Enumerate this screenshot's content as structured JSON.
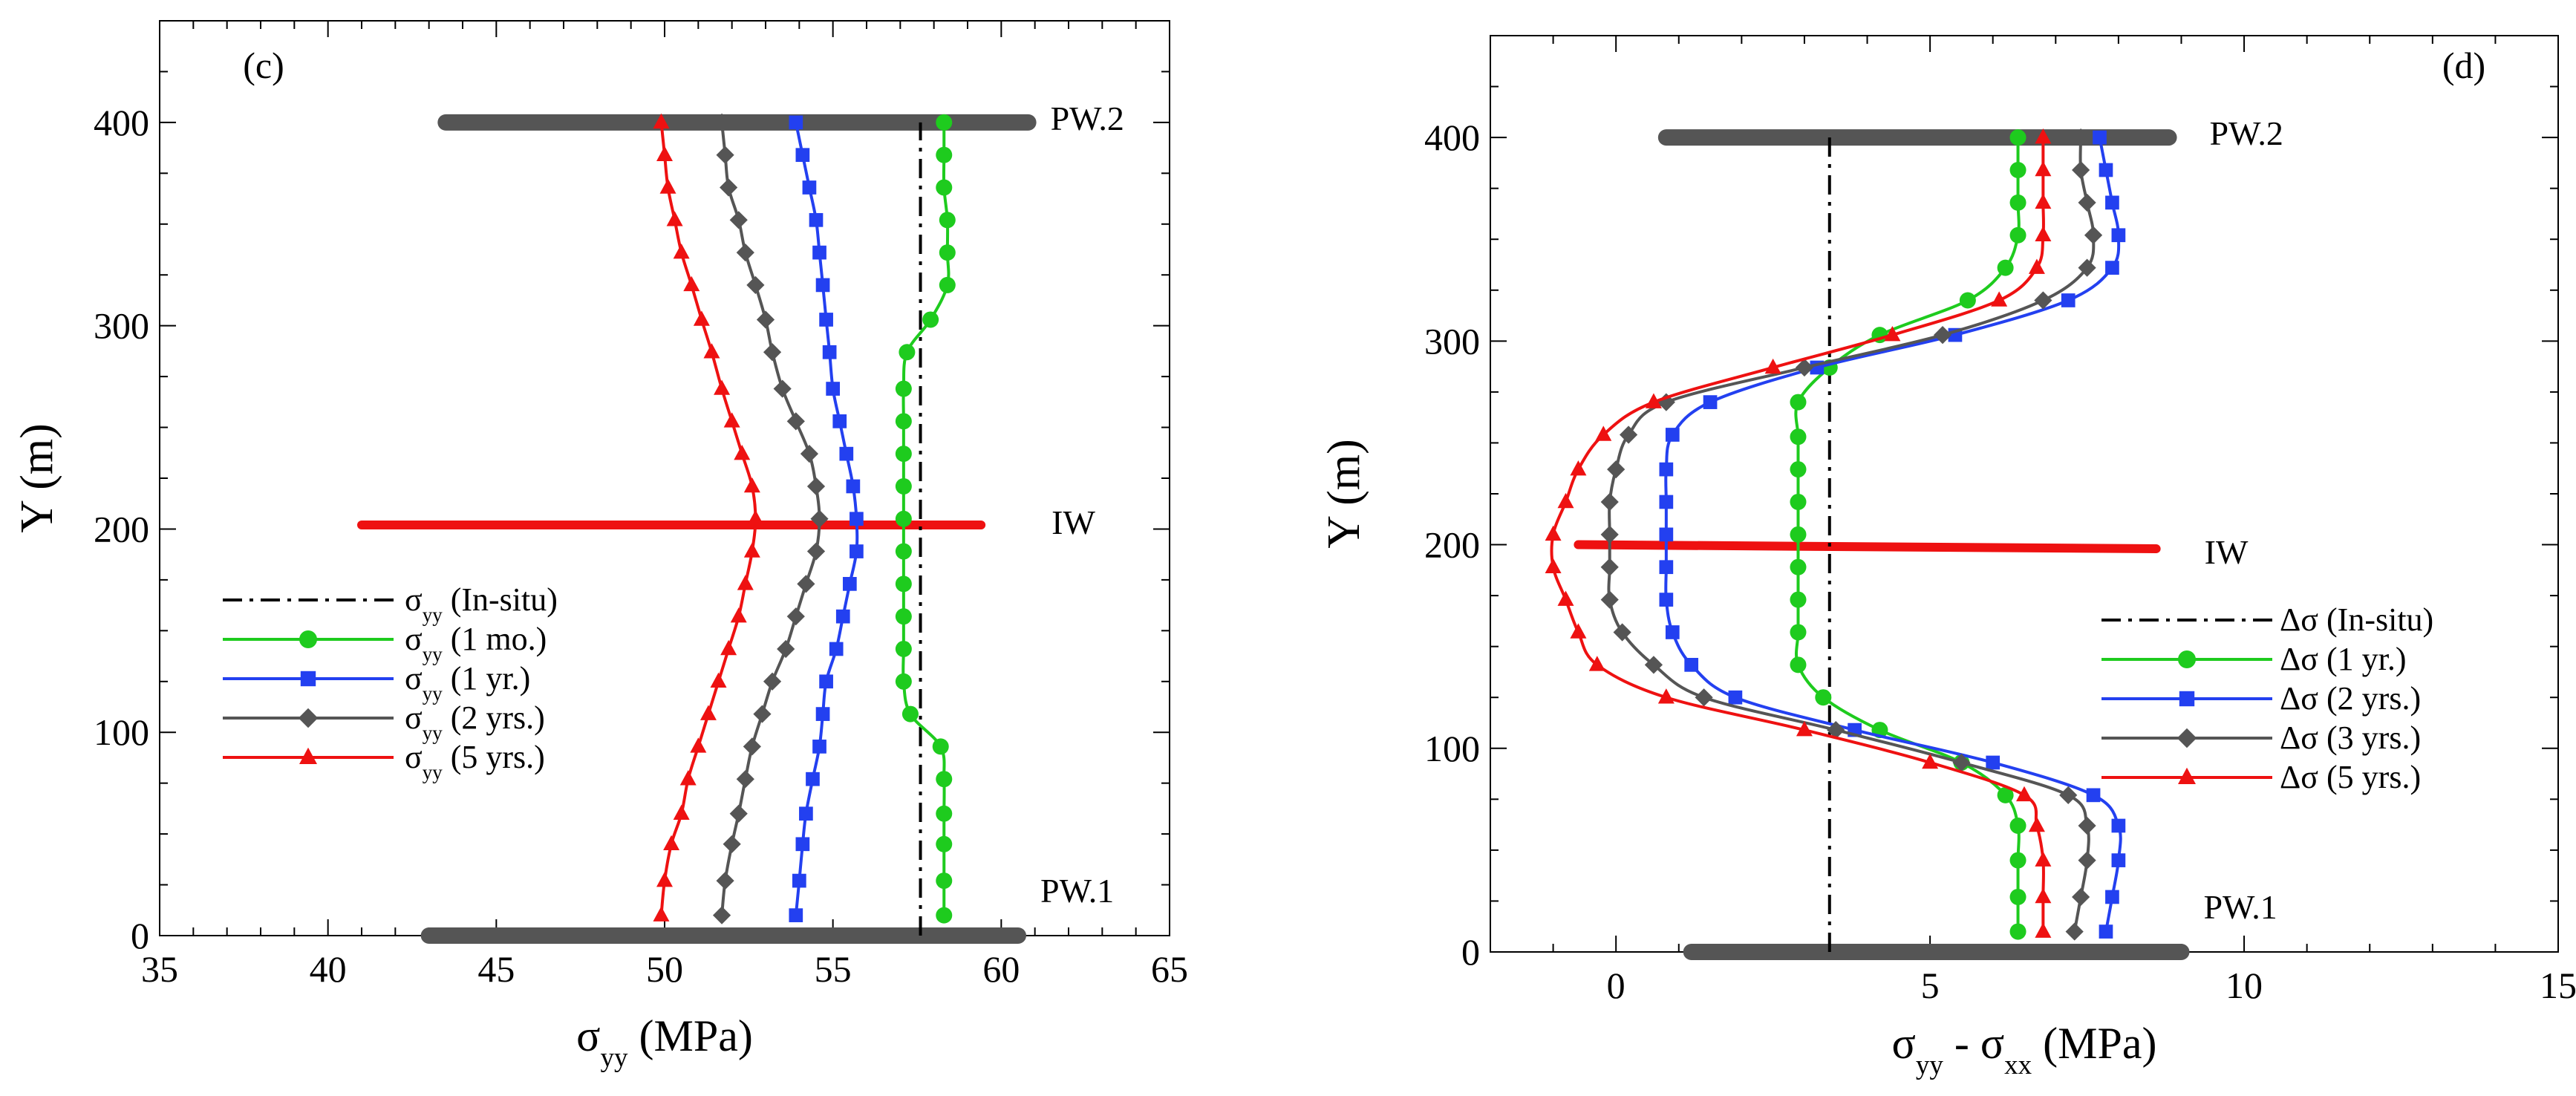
{
  "colors": {
    "insitu": "#000000",
    "green": "#1ecb1e",
    "blue": "#2340f0",
    "gray": "#555555",
    "red": "#ee1111",
    "well": "#555555",
    "iw": "#ee1111"
  },
  "chart_data": [
    {
      "type": "line",
      "panel_label": "(c)",
      "xlabel": {
        "main": "σ",
        "sub": "yy",
        "rest": " (MPa)"
      },
      "ylabel": "Y (m)",
      "xlim": [
        35,
        65
      ],
      "ylim": [
        0,
        450
      ],
      "xticks": [
        35,
        40,
        45,
        50,
        55,
        60,
        65
      ],
      "xtick_labels": [
        "35",
        "40",
        "45",
        "50",
        "55",
        "60",
        "65"
      ],
      "yticks": [
        0,
        100,
        200,
        300,
        400
      ],
      "ytick_labels": [
        "0",
        "100",
        "200",
        "300",
        "400"
      ],
      "wells": [
        {
          "label": "PW.2",
          "y": 400,
          "x": [
            43.5,
            60.8
          ],
          "color": "#555555"
        },
        {
          "label": "PW.1",
          "y": 0,
          "x": [
            43.0,
            60.5
          ],
          "color": "#555555"
        },
        {
          "label": "IW",
          "y": 202,
          "x": [
            41.0,
            59.4
          ],
          "color": "#ee1111"
        }
      ],
      "legend": {
        "position": "lower-left",
        "entries": [
          {
            "main": "σ",
            "sub": "yy",
            "rest": " (In-situ)"
          },
          {
            "main": "σ",
            "sub": "yy",
            "rest": " (1 mo.)"
          },
          {
            "main": "σ",
            "sub": "yy",
            "rest": " (1 yr.)"
          },
          {
            "main": "σ",
            "sub": "yy",
            "rest": " (2 yrs.)"
          },
          {
            "main": "σ",
            "sub": "yy",
            "rest": " (5 yrs.)"
          }
        ]
      },
      "series": [
        {
          "name": "σyy (In-situ)",
          "style": "dashdot",
          "marker": "none",
          "color": "#000000",
          "points": [
            [
              57.6,
              0
            ],
            [
              57.6,
              400
            ]
          ]
        },
        {
          "name": "σyy (1 mo.)",
          "style": "solid",
          "marker": "circle",
          "color": "#1ecb1e",
          "points": [
            [
              58.3,
              10
            ],
            [
              58.3,
              27
            ],
            [
              58.3,
              45
            ],
            [
              58.3,
              60
            ],
            [
              58.3,
              77
            ],
            [
              58.2,
              93
            ],
            [
              57.3,
              109
            ],
            [
              57.1,
              125
            ],
            [
              57.1,
              141
            ],
            [
              57.1,
              157
            ],
            [
              57.1,
              173
            ],
            [
              57.1,
              189
            ],
            [
              57.1,
              205
            ],
            [
              57.1,
              221
            ],
            [
              57.1,
              237
            ],
            [
              57.1,
              253
            ],
            [
              57.1,
              269
            ],
            [
              57.2,
              287
            ],
            [
              57.9,
              303
            ],
            [
              58.4,
              320
            ],
            [
              58.4,
              336
            ],
            [
              58.4,
              352
            ],
            [
              58.3,
              368
            ],
            [
              58.3,
              384
            ],
            [
              58.3,
              400
            ]
          ]
        },
        {
          "name": "σyy (1 yr.)",
          "style": "solid",
          "marker": "square",
          "color": "#2340f0",
          "points": [
            [
              53.9,
              10
            ],
            [
              54.0,
              27
            ],
            [
              54.1,
              45
            ],
            [
              54.2,
              60
            ],
            [
              54.4,
              77
            ],
            [
              54.6,
              93
            ],
            [
              54.7,
              109
            ],
            [
              54.8,
              125
            ],
            [
              55.1,
              141
            ],
            [
              55.3,
              157
            ],
            [
              55.5,
              173
            ],
            [
              55.7,
              189
            ],
            [
              55.7,
              205
            ],
            [
              55.6,
              221
            ],
            [
              55.4,
              237
            ],
            [
              55.2,
              253
            ],
            [
              55.0,
              269
            ],
            [
              54.9,
              287
            ],
            [
              54.8,
              303
            ],
            [
              54.7,
              320
            ],
            [
              54.6,
              336
            ],
            [
              54.5,
              352
            ],
            [
              54.3,
              368
            ],
            [
              54.1,
              384
            ],
            [
              53.9,
              400
            ]
          ]
        },
        {
          "name": "σyy (2 yrs.)",
          "style": "solid",
          "marker": "diamond",
          "color": "#555555",
          "points": [
            [
              51.7,
              10
            ],
            [
              51.8,
              27
            ],
            [
              52.0,
              45
            ],
            [
              52.2,
              60
            ],
            [
              52.4,
              77
            ],
            [
              52.6,
              93
            ],
            [
              52.9,
              109
            ],
            [
              53.2,
              125
            ],
            [
              53.6,
              141
            ],
            [
              53.9,
              157
            ],
            [
              54.2,
              173
            ],
            [
              54.5,
              189
            ],
            [
              54.6,
              205
            ],
            [
              54.5,
              221
            ],
            [
              54.3,
              237
            ],
            [
              53.9,
              253
            ],
            [
              53.5,
              269
            ],
            [
              53.2,
              287
            ],
            [
              53.0,
              303
            ],
            [
              52.7,
              320
            ],
            [
              52.4,
              336
            ],
            [
              52.2,
              352
            ],
            [
              51.9,
              368
            ],
            [
              51.8,
              384
            ],
            [
              51.7,
              400
            ]
          ]
        },
        {
          "name": "σyy (5 yrs.)",
          "style": "solid",
          "marker": "triangle",
          "color": "#ee1111",
          "points": [
            [
              49.9,
              10
            ],
            [
              50.0,
              27
            ],
            [
              50.2,
              45
            ],
            [
              50.5,
              60
            ],
            [
              50.7,
              77
            ],
            [
              51.0,
              93
            ],
            [
              51.3,
              109
            ],
            [
              51.6,
              125
            ],
            [
              51.9,
              141
            ],
            [
              52.2,
              157
            ],
            [
              52.4,
              173
            ],
            [
              52.6,
              189
            ],
            [
              52.7,
              205
            ],
            [
              52.6,
              221
            ],
            [
              52.3,
              237
            ],
            [
              52.0,
              253
            ],
            [
              51.7,
              269
            ],
            [
              51.4,
              287
            ],
            [
              51.1,
              303
            ],
            [
              50.8,
              320
            ],
            [
              50.5,
              336
            ],
            [
              50.3,
              352
            ],
            [
              50.1,
              368
            ],
            [
              50.0,
              384
            ],
            [
              49.9,
              400
            ]
          ]
        }
      ]
    },
    {
      "type": "line",
      "panel_label": "(d)",
      "xlabel": {
        "main": "σ",
        "sub": "yy",
        "rest": " - ",
        "main2": "σ",
        "sub2": "xx",
        "rest2": " (MPa)"
      },
      "ylabel": "Y (m)",
      "xlim": [
        -2,
        15
      ],
      "ylim": [
        0,
        450
      ],
      "xticks": [
        0,
        5,
        10,
        15
      ],
      "xtick_labels": [
        "0",
        "5",
        "10",
        "15"
      ],
      "yticks": [
        0,
        100,
        200,
        300,
        400
      ],
      "ytick_labels": [
        "0",
        "100",
        "200",
        "300",
        "400"
      ],
      "wells": [
        {
          "label": "PW.2",
          "y": 400,
          "x": [
            0.8,
            8.8
          ],
          "color": "#555555"
        },
        {
          "label": "PW.1",
          "y": 0,
          "x": [
            1.2,
            9.0
          ],
          "color": "#555555"
        },
        {
          "label": "IW",
          "y": 200,
          "x": [
            -0.6,
            8.6
          ],
          "y_end": 198,
          "color": "#ee1111"
        }
      ],
      "legend": {
        "position": "lower-right",
        "entries": [
          {
            "main": "Δσ",
            "rest": " (In-situ)"
          },
          {
            "main": "Δσ",
            "rest": " (1 yr.)"
          },
          {
            "main": "Δσ",
            "rest": " (2 yrs.)"
          },
          {
            "main": "Δσ",
            "rest": " (3 yrs.)"
          },
          {
            "main": "Δσ",
            "rest": " (5 yrs.)"
          }
        ]
      },
      "series": [
        {
          "name": "Δσ (In-situ)",
          "style": "dashdot",
          "marker": "none",
          "color": "#000000",
          "points": [
            [
              3.4,
              0
            ],
            [
              3.4,
              400
            ]
          ]
        },
        {
          "name": "Δσ (1 yr.)",
          "style": "solid",
          "marker": "circle",
          "color": "#1ecb1e",
          "points": [
            [
              6.4,
              10
            ],
            [
              6.4,
              27
            ],
            [
              6.4,
              45
            ],
            [
              6.4,
              62
            ],
            [
              6.2,
              77
            ],
            [
              5.5,
              93
            ],
            [
              4.2,
              109
            ],
            [
              3.3,
              125
            ],
            [
              2.9,
              141
            ],
            [
              2.9,
              157
            ],
            [
              2.9,
              173
            ],
            [
              2.9,
              189
            ],
            [
              2.9,
              205
            ],
            [
              2.9,
              221
            ],
            [
              2.9,
              237
            ],
            [
              2.9,
              253
            ],
            [
              2.9,
              270
            ],
            [
              3.4,
              287
            ],
            [
              4.2,
              303
            ],
            [
              5.6,
              320
            ],
            [
              6.2,
              336
            ],
            [
              6.4,
              352
            ],
            [
              6.4,
              368
            ],
            [
              6.4,
              384
            ],
            [
              6.4,
              400
            ]
          ]
        },
        {
          "name": "Δσ (2 yrs.)",
          "style": "solid",
          "marker": "square",
          "color": "#2340f0",
          "points": [
            [
              7.8,
              10
            ],
            [
              7.9,
              27
            ],
            [
              8.0,
              45
            ],
            [
              8.0,
              62
            ],
            [
              7.6,
              77
            ],
            [
              6.0,
              93
            ],
            [
              3.8,
              109
            ],
            [
              1.9,
              125
            ],
            [
              1.2,
              141
            ],
            [
              0.9,
              157
            ],
            [
              0.8,
              173
            ],
            [
              0.8,
              189
            ],
            [
              0.8,
              205
            ],
            [
              0.8,
              221
            ],
            [
              0.8,
              237
            ],
            [
              0.9,
              254
            ],
            [
              1.5,
              270
            ],
            [
              3.2,
              287
            ],
            [
              5.4,
              303
            ],
            [
              7.2,
              320
            ],
            [
              7.9,
              336
            ],
            [
              8.0,
              352
            ],
            [
              7.9,
              368
            ],
            [
              7.8,
              384
            ],
            [
              7.7,
              400
            ]
          ]
        },
        {
          "name": "Δσ (3 yrs.)",
          "style": "solid",
          "marker": "diamond",
          "color": "#555555",
          "points": [
            [
              7.3,
              10
            ],
            [
              7.4,
              27
            ],
            [
              7.5,
              45
            ],
            [
              7.5,
              62
            ],
            [
              7.2,
              77
            ],
            [
              5.5,
              93
            ],
            [
              3.5,
              109
            ],
            [
              1.4,
              125
            ],
            [
              0.6,
              141
            ],
            [
              0.1,
              157
            ],
            [
              -0.1,
              173
            ],
            [
              -0.1,
              189
            ],
            [
              -0.1,
              205
            ],
            [
              -0.1,
              221
            ],
            [
              0.0,
              237
            ],
            [
              0.2,
              254
            ],
            [
              0.8,
              270
            ],
            [
              3.0,
              287
            ],
            [
              5.2,
              303
            ],
            [
              6.8,
              320
            ],
            [
              7.5,
              336
            ],
            [
              7.6,
              352
            ],
            [
              7.5,
              368
            ],
            [
              7.4,
              384
            ],
            [
              7.4,
              400
            ]
          ]
        },
        {
          "name": "Δσ (5 yrs.)",
          "style": "solid",
          "marker": "triangle",
          "color": "#ee1111",
          "points": [
            [
              6.8,
              10
            ],
            [
              6.8,
              27
            ],
            [
              6.8,
              45
            ],
            [
              6.7,
              62
            ],
            [
              6.5,
              77
            ],
            [
              5.0,
              93
            ],
            [
              3.0,
              109
            ],
            [
              0.8,
              125
            ],
            [
              -0.3,
              141
            ],
            [
              -0.6,
              157
            ],
            [
              -0.8,
              173
            ],
            [
              -1.0,
              189
            ],
            [
              -1.0,
              205
            ],
            [
              -0.8,
              221
            ],
            [
              -0.6,
              237
            ],
            [
              -0.2,
              254
            ],
            [
              0.6,
              270
            ],
            [
              2.5,
              287
            ],
            [
              4.4,
              303
            ],
            [
              6.1,
              320
            ],
            [
              6.7,
              336
            ],
            [
              6.8,
              352
            ],
            [
              6.8,
              368
            ],
            [
              6.8,
              384
            ],
            [
              6.8,
              400
            ]
          ]
        }
      ]
    }
  ]
}
